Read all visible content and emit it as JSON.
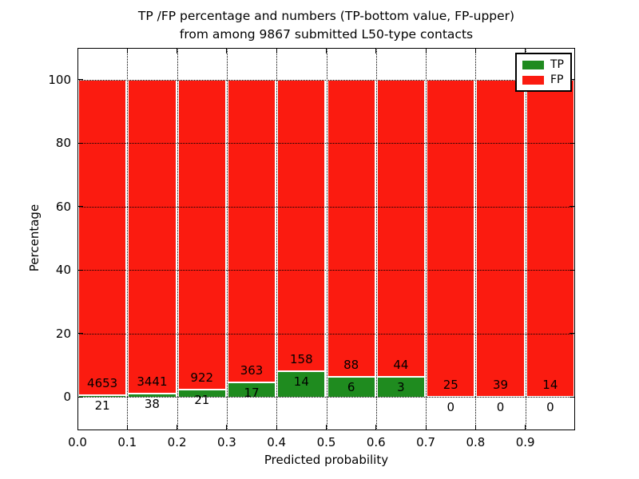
{
  "chart_data": {
    "type": "bar",
    "stacked": true,
    "title": "TP /FP percentage and numbers (TP-bottom value, FP-upper)\nfrom among 9867 submitted L50-type contacts",
    "title_line1": "TP /FP percentage and numbers (TP-bottom value, FP-upper)",
    "title_line2": "from among 9867 submitted L50-type contacts",
    "xlabel": "Predicted probability",
    "ylabel": "Percentage",
    "x_tick_labels": [
      "0.0",
      "0.1",
      "0.2",
      "0.3",
      "0.4",
      "0.5",
      "0.6",
      "0.7",
      "0.8",
      "0.9"
    ],
    "x_tick_values": [
      0.0,
      0.1,
      0.2,
      0.3,
      0.4,
      0.5,
      0.6,
      0.7,
      0.8,
      0.9
    ],
    "y_tick_values": [
      0,
      20,
      40,
      60,
      80,
      100
    ],
    "xlim": [
      0.0,
      1.0
    ],
    "ylim": [
      -10.5,
      110
    ],
    "grid": "dotted",
    "legend_position": "upper right",
    "series": [
      {
        "name": "TP",
        "color": "#1f8b1f"
      },
      {
        "name": "FP",
        "color": "#fb1b10"
      }
    ],
    "bins": [
      {
        "range": [
          0.0,
          0.1
        ],
        "tp": 21,
        "fp": 4653,
        "tp_pct": 0.45,
        "fp_pct": 99.55
      },
      {
        "range": [
          0.1,
          0.2
        ],
        "tp": 38,
        "fp": 3441,
        "tp_pct": 1.09,
        "fp_pct": 98.91
      },
      {
        "range": [
          0.2,
          0.3
        ],
        "tp": 21,
        "fp": 922,
        "tp_pct": 2.23,
        "fp_pct": 97.77
      },
      {
        "range": [
          0.3,
          0.4
        ],
        "tp": 17,
        "fp": 363,
        "tp_pct": 4.47,
        "fp_pct": 95.53
      },
      {
        "range": [
          0.4,
          0.5
        ],
        "tp": 14,
        "fp": 158,
        "tp_pct": 8.14,
        "fp_pct": 91.86
      },
      {
        "range": [
          0.5,
          0.6
        ],
        "tp": 6,
        "fp": 88,
        "tp_pct": 6.38,
        "fp_pct": 93.62
      },
      {
        "range": [
          0.6,
          0.7
        ],
        "tp": 3,
        "fp": 44,
        "tp_pct": 6.38,
        "fp_pct": 93.62
      },
      {
        "range": [
          0.7,
          0.8
        ],
        "tp": 0,
        "fp": 25,
        "tp_pct": 0.0,
        "fp_pct": 100.0
      },
      {
        "range": [
          0.8,
          0.9
        ],
        "tp": 0,
        "fp": 39,
        "tp_pct": 0.0,
        "fp_pct": 100.0
      },
      {
        "range": [
          0.9,
          1.0
        ],
        "tp": 0,
        "fp": 14,
        "tp_pct": 0.0,
        "fp_pct": 100.0
      }
    ]
  }
}
